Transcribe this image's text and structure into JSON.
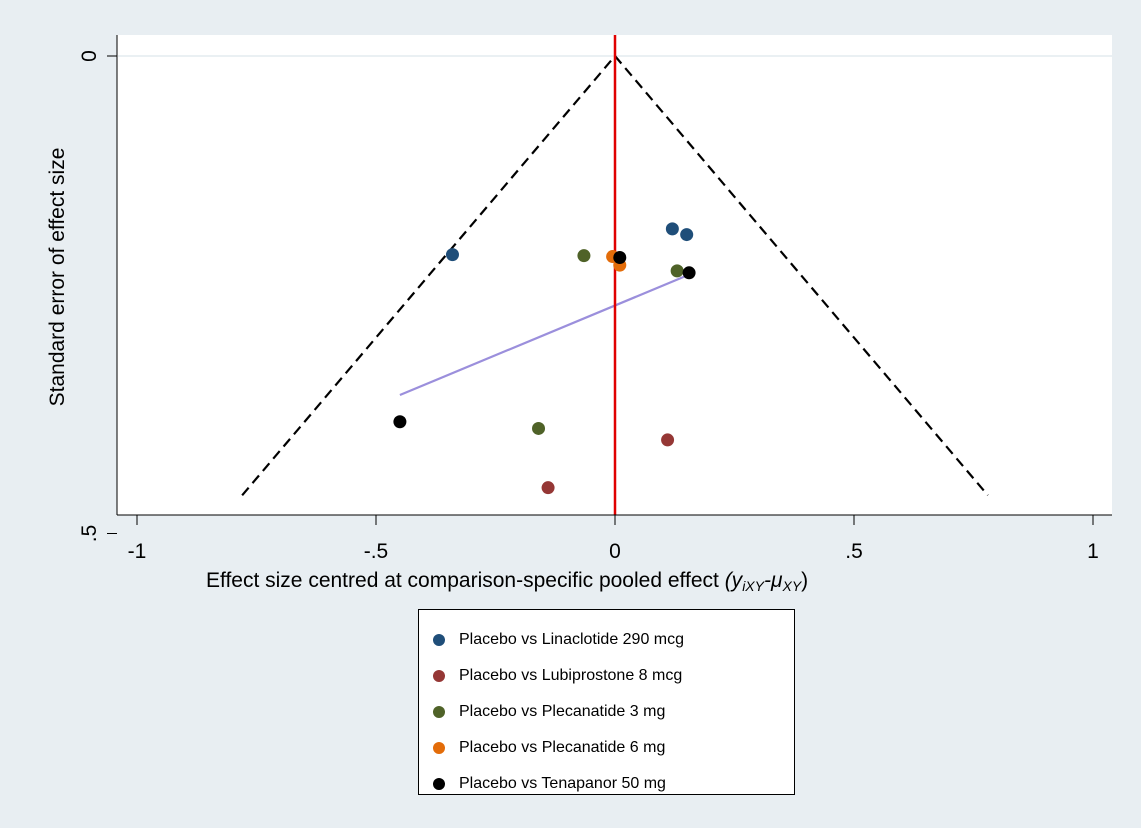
{
  "chart_data": {
    "type": "scatter",
    "xlabel": "Effect size centred at comparison-specific pooled effect",
    "xlabel_math": "(y",
    "xlabel_sub1": "iXY",
    "xlabel_mid": "-μ",
    "xlabel_sub2": "XY",
    "xlabel_end": ")",
    "ylabel": "Standard error of effect size",
    "xlim": [
      -1.05,
      1.05
    ],
    "ylim_reversed": [
      0,
      0.47
    ],
    "x_ticks": [
      {
        "value": -1,
        "label": "-1"
      },
      {
        "value": -0.5,
        "label": "-.5"
      },
      {
        "value": 0,
        "label": "0"
      },
      {
        "value": 0.5,
        "label": ".5"
      },
      {
        "value": 1,
        "label": "1"
      }
    ],
    "y_ticks": [
      {
        "value": 0,
        "label": "0"
      },
      {
        "value": 0.5,
        "label": ".5"
      }
    ],
    "funnel": {
      "apex": [
        0,
        0
      ],
      "left": [
        -0.78,
        0.46
      ],
      "right": [
        0.78,
        0.46
      ]
    },
    "reference_line_x": 0,
    "regression_line": [
      [
        -0.45,
        0.355
      ],
      [
        0.15,
        0.23
      ]
    ],
    "legend_position": "bottom",
    "series": [
      {
        "name": "Placebo vs Linaclotide 290 mcg",
        "color": "#1f4e79",
        "points": [
          [
            -0.34,
            0.208
          ],
          [
            0.12,
            0.181
          ],
          [
            0.15,
            0.187
          ]
        ]
      },
      {
        "name": "Placebo vs Lubiprostone 8 mcg",
        "color": "#953735",
        "points": [
          [
            -0.14,
            0.452
          ],
          [
            0.11,
            0.402
          ]
        ]
      },
      {
        "name": "Placebo vs Plecanatide 3 mg",
        "color": "#4f6228",
        "points": [
          [
            -0.16,
            0.39
          ],
          [
            -0.065,
            0.209
          ],
          [
            0.13,
            0.225
          ]
        ]
      },
      {
        "name": "Placebo vs Plecanatide 6 mg",
        "color": "#e36c09",
        "points": [
          [
            -0.005,
            0.21
          ],
          [
            0.01,
            0.219
          ]
        ]
      },
      {
        "name": "Placebo vs Tenapanor 50 mg",
        "color": "#000000",
        "points": [
          [
            -0.45,
            0.383
          ],
          [
            0.01,
            0.211
          ],
          [
            0.155,
            0.227
          ]
        ]
      }
    ],
    "colors": {
      "reference_line": "#e00000",
      "regression_line": "#9b8fdc",
      "funnel": "#000000"
    }
  }
}
